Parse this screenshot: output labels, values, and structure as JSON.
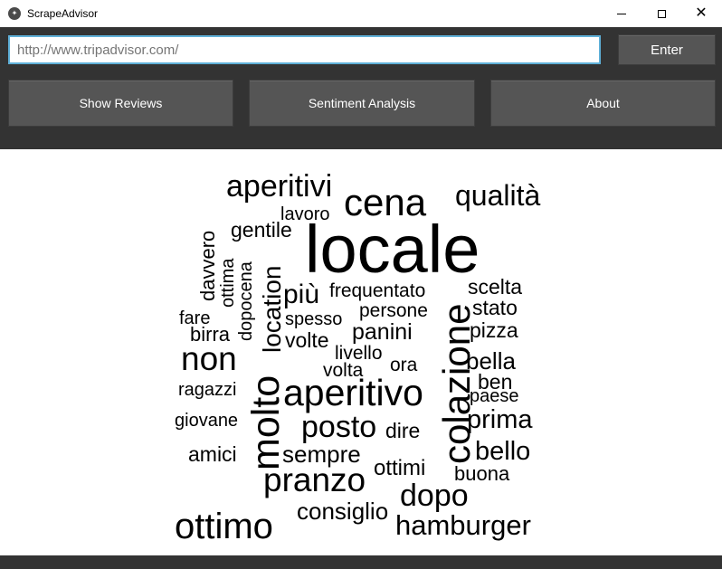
{
  "window": {
    "title": "ScrapeAdvisor",
    "icon": "app-logo-icon",
    "controls": {
      "minimize_icon": "minimize-icon",
      "maximize_icon": "maximize-icon",
      "close_icon": "close-icon"
    }
  },
  "toolbar": {
    "url_placeholder": "http://www.tripadvisor.com/",
    "url_value": "",
    "enter_label": "Enter",
    "buttons": [
      "Show Reviews",
      "Sentiment Analysis",
      "About"
    ]
  },
  "colors": {
    "toolbar_bg": "#333333",
    "button_bg": "#555555",
    "input_focus_border": "#5fb0d8"
  },
  "word_cloud": {
    "words": [
      "locale",
      "cena",
      "qualità",
      "aperitivi",
      "lavoro",
      "gentile",
      "davvero",
      "ottima",
      "dopocena",
      "location",
      "più",
      "frequentato",
      "scelta",
      "stato",
      "persone",
      "fare",
      "spesso",
      "birra",
      "volte",
      "panini",
      "pizza",
      "livello",
      "non",
      "volta",
      "ora",
      "bella",
      "ben",
      "ragazzi",
      "molto",
      "aperitivo",
      "colazione",
      "paese",
      "giovane",
      "posto",
      "prima",
      "dire",
      "amici",
      "sempre",
      "bello",
      "ottimi",
      "buona",
      "pranzo",
      "dopo",
      "consiglio",
      "ottimo",
      "hamburger"
    ]
  }
}
